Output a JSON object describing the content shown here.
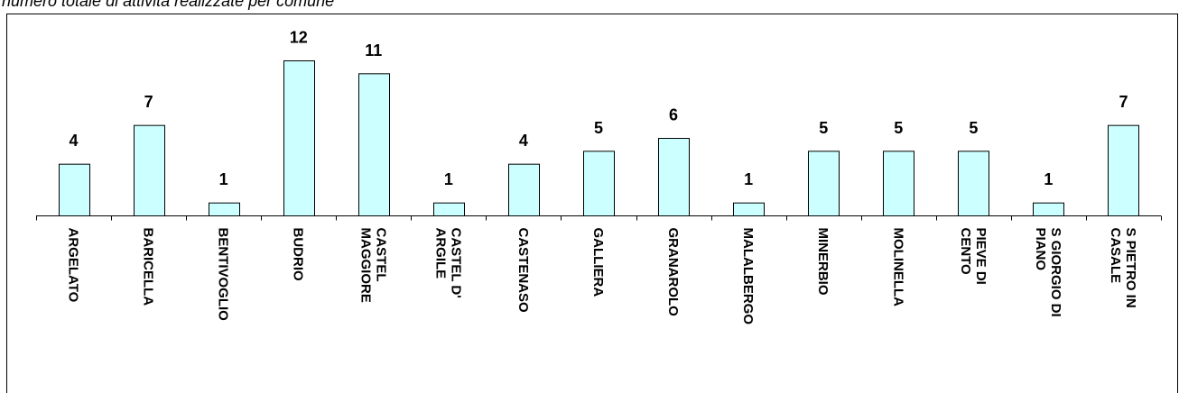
{
  "header": {
    "caption": "numero totale di attività realizzate  per comune"
  },
  "colors": {
    "bar_fill": "#ccffff",
    "bar_stroke": "#000000",
    "background": "#ffffff"
  },
  "chart_data": {
    "type": "bar",
    "categories": [
      "ARGELATO",
      "BARICELLA",
      "BENTIVOGLIO",
      "BUDRIO",
      "CASTEL MAGGIORE",
      "CASTEL D' ARGILE",
      "CASTENASO",
      "GALLIERA",
      "GRANAROLO",
      "MALALBERGO",
      "MINERBIO",
      "MOLINELLA",
      "PIEVE DI CENTO",
      "S GIORGIO DI PIANO",
      "S PIETRO IN CASALE"
    ],
    "category_lines": [
      [
        "ARGELATO"
      ],
      [
        "BARICELLA"
      ],
      [
        "BENTIVOGLIO"
      ],
      [
        "BUDRIO"
      ],
      [
        "CASTEL",
        "MAGGIORE"
      ],
      [
        "CASTEL D'",
        "ARGILE"
      ],
      [
        "CASTENASO"
      ],
      [
        "GALLIERA"
      ],
      [
        "GRANAROLO"
      ],
      [
        "MALALBERGO"
      ],
      [
        "MINERBIO"
      ],
      [
        "MOLINELLA"
      ],
      [
        "PIEVE DI",
        "CENTO"
      ],
      [
        "S GIORGIO DI",
        "PIANO"
      ],
      [
        "S PIETRO IN",
        "CASALE"
      ]
    ],
    "values": [
      4,
      7,
      1,
      12,
      11,
      1,
      4,
      5,
      6,
      1,
      5,
      5,
      5,
      1,
      7
    ],
    "title": "",
    "xlabel": "",
    "ylabel": "",
    "ylim": [
      0,
      12
    ],
    "grid": false,
    "legend": "none",
    "data_labels": true
  }
}
